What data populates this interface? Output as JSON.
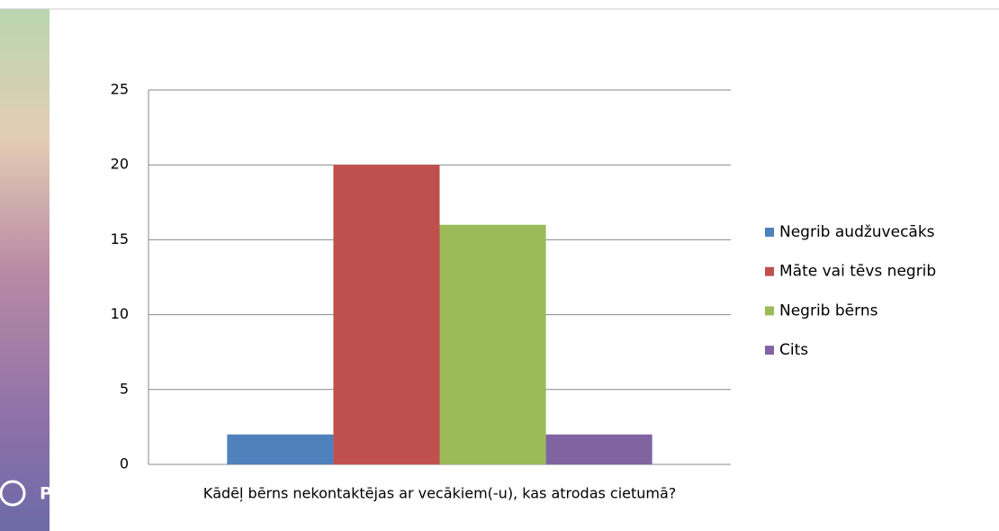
{
  "brand": "Prezi",
  "chart_data": {
    "type": "bar",
    "categories": [
      "Kādēļ bērns nekontaktējas ar vecākiem(-u), kas atrodas cietumā?"
    ],
    "series": [
      {
        "name": "Negrib audžuvecāks",
        "color": "#4f81bd",
        "values": [
          2
        ]
      },
      {
        "name": "Māte vai tēvs negrib",
        "color": "#c0504d",
        "values": [
          20
        ]
      },
      {
        "name": "Negrib bērns",
        "color": "#9bbb59",
        "values": [
          16
        ]
      },
      {
        "name": "Cits",
        "color": "#8064a2",
        "values": [
          2
        ]
      }
    ],
    "ylim": [
      0,
      25
    ],
    "yticks": [
      0,
      5,
      10,
      15,
      20,
      25
    ],
    "grid": true,
    "legend": "right"
  }
}
